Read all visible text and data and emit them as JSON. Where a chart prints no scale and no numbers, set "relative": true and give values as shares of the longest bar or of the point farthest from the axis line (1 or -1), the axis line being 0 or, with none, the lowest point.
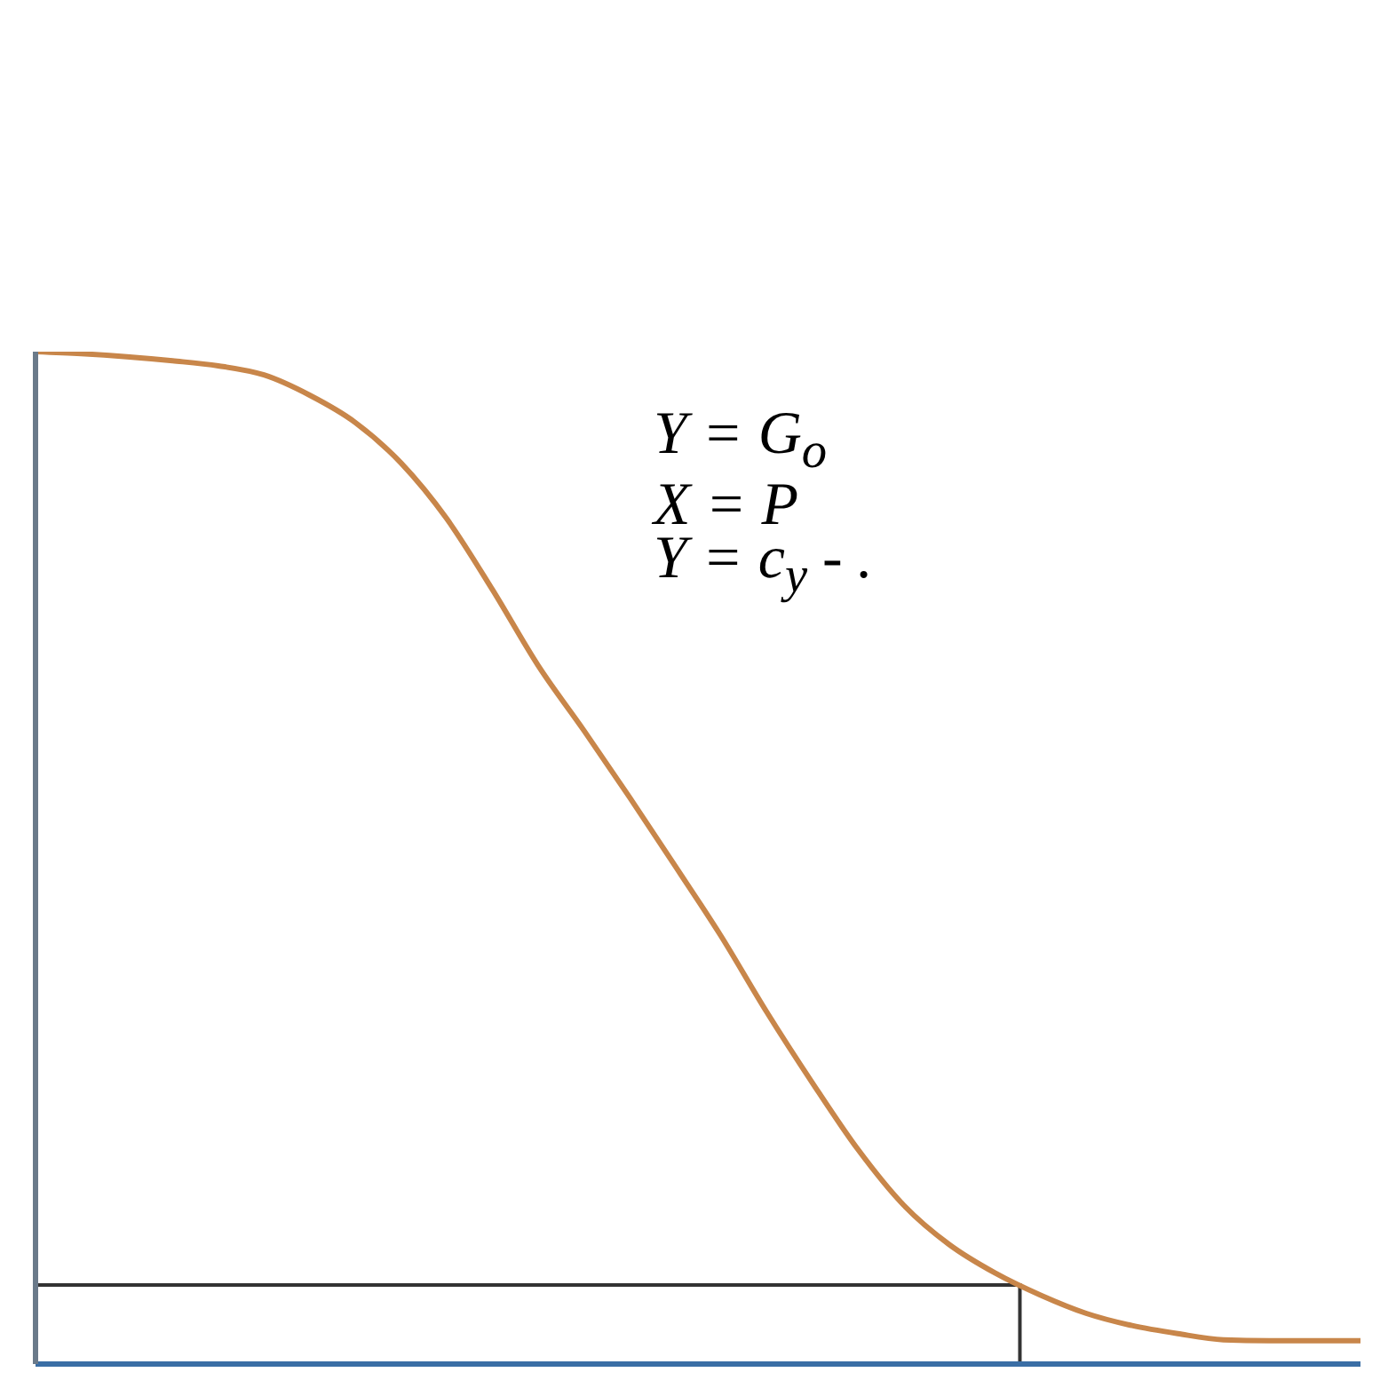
{
  "chart_data": {
    "type": "line",
    "relative": true,
    "categories": [
      null,
      null,
      null,
      null,
      null,
      null,
      null,
      null,
      null,
      null,
      null,
      null,
      null,
      null,
      null,
      null,
      null,
      null,
      null,
      null,
      null,
      null,
      null,
      null,
      null,
      null,
      null,
      null,
      null,
      null
    ],
    "series": [
      {
        "color": "#c8864a",
        "values": [
          1.0,
          0.998,
          0.995,
          0.991,
          0.986,
          0.977,
          0.957,
          0.93,
          0.89,
          0.835,
          0.765,
          0.69,
          0.626,
          0.56,
          0.492,
          0.423,
          0.348,
          0.278,
          0.212,
          0.157,
          0.118,
          0.09,
          0.068,
          0.05,
          0.038,
          0.03,
          0.024,
          0.023,
          0.023,
          0.023
        ]
      }
    ],
    "ref_lines": [
      {
        "axis": "y",
        "value": 0.078,
        "color": "#333333"
      }
    ],
    "annotations": [
      "Y = G$_{o}$",
      "X = P",
      "Y = c$_{y}$ - ."
    ],
    "marker": "none",
    "line_style": "solid",
    "grid": false,
    "legend": false
  }
}
